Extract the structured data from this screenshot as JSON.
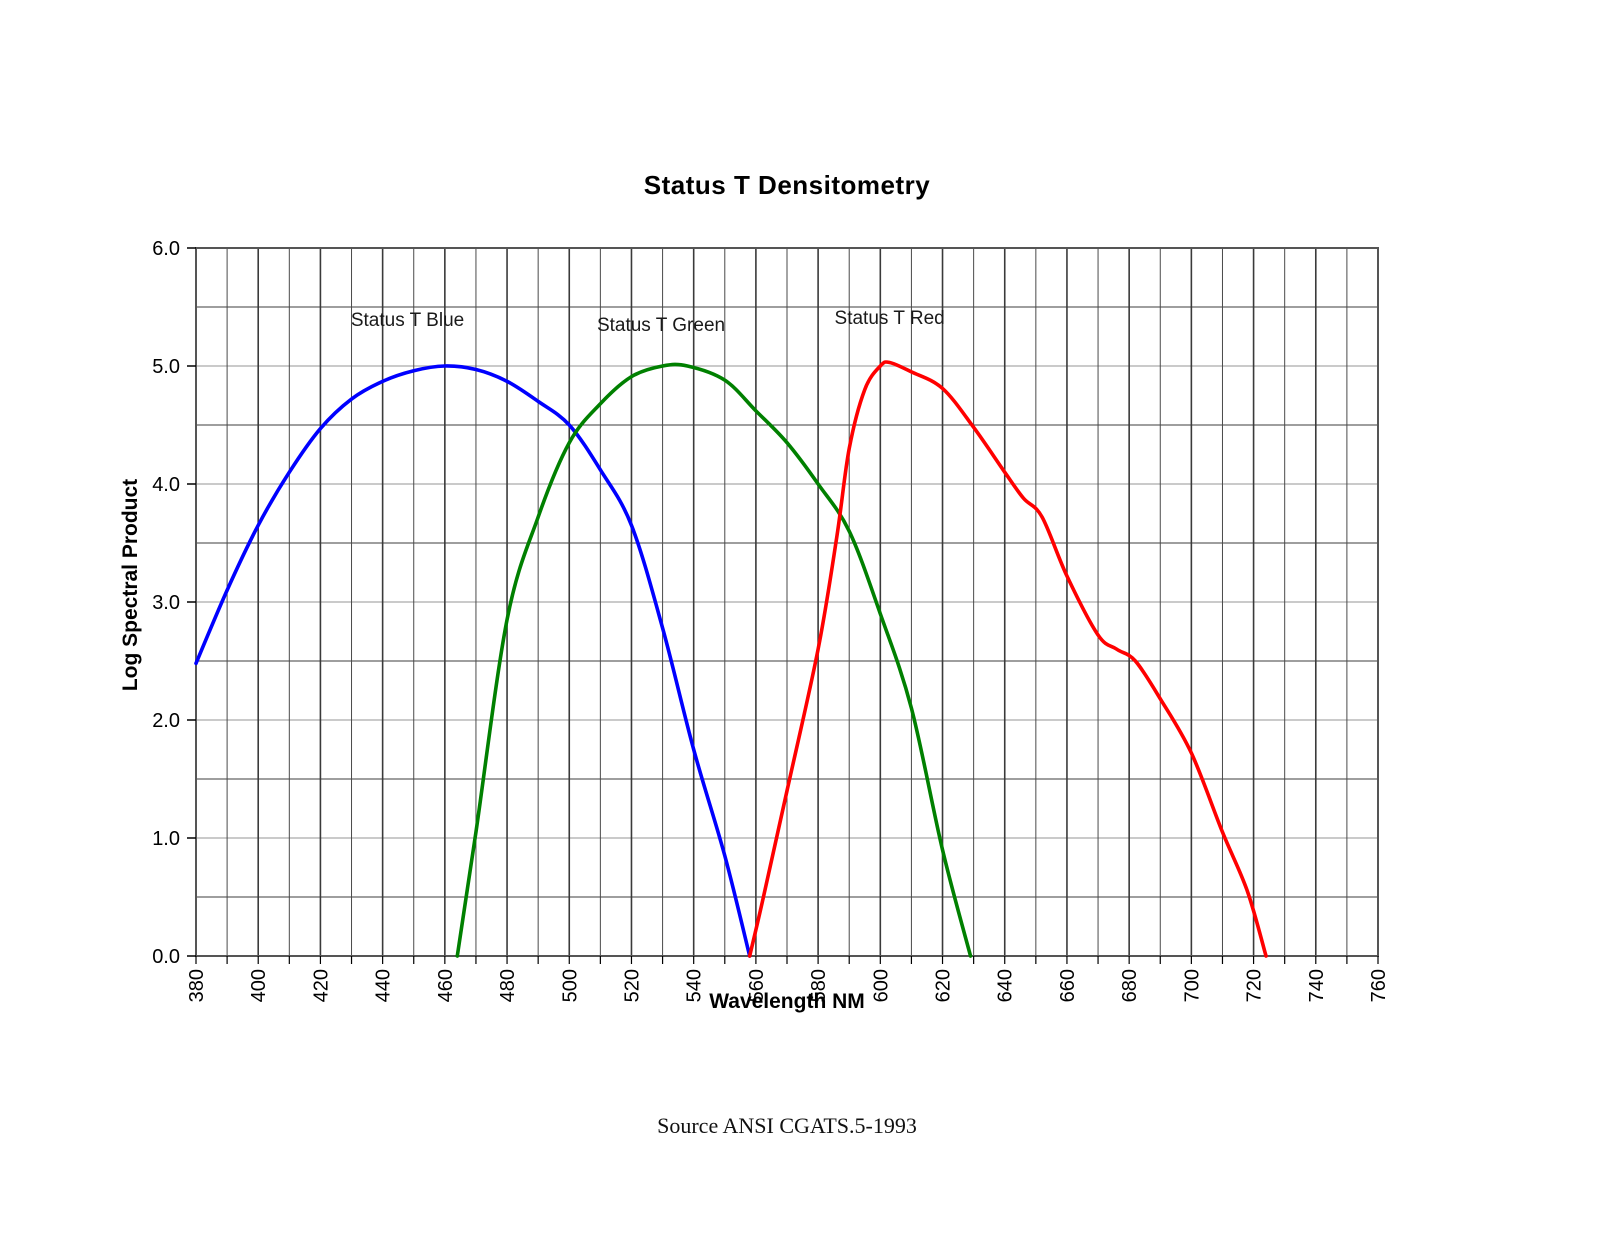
{
  "page": {
    "title": "Status T Densitometry",
    "source": "Source ANSI CGATS.5-1993"
  },
  "chart_data": {
    "type": "line",
    "title": "Status T Densitometry",
    "xlabel": "Wavelength NM",
    "ylabel": "Log Spectral Product",
    "x_axis": {
      "min": 380,
      "max": 760,
      "minor_step": 10,
      "tick_step": 20,
      "tick_labels": [
        "380",
        "400",
        "420",
        "440",
        "460",
        "480",
        "500",
        "520",
        "540",
        "560",
        "580",
        "600",
        "620",
        "640",
        "660",
        "680",
        "700",
        "720",
        "740",
        "760"
      ]
    },
    "y_axis": {
      "min": 0,
      "max": 6,
      "minor_step": 0.5,
      "tick_step": 1,
      "tick_labels": [
        "0.0",
        "1.0",
        "2.0",
        "3.0",
        "4.0",
        "5.0",
        "6.0"
      ]
    },
    "grid": "on",
    "legend": "inline-labels",
    "series": [
      {
        "name": "Status T Blue",
        "color": "#0000FF",
        "points": [
          [
            380,
            2.48
          ],
          [
            390,
            3.1
          ],
          [
            400,
            3.65
          ],
          [
            410,
            4.1
          ],
          [
            420,
            4.47
          ],
          [
            430,
            4.72
          ],
          [
            440,
            4.87
          ],
          [
            450,
            4.96
          ],
          [
            460,
            5.0
          ],
          [
            470,
            4.97
          ],
          [
            480,
            4.87
          ],
          [
            490,
            4.7
          ],
          [
            500,
            4.5
          ],
          [
            510,
            4.12
          ],
          [
            520,
            3.65
          ],
          [
            530,
            2.78
          ],
          [
            540,
            1.75
          ],
          [
            550,
            0.85
          ],
          [
            558,
            0.0
          ]
        ]
      },
      {
        "name": "Status T Green",
        "color": "#008000",
        "points": [
          [
            464,
            0.0
          ],
          [
            470,
            1.05
          ],
          [
            480,
            2.85
          ],
          [
            490,
            3.72
          ],
          [
            500,
            4.35
          ],
          [
            510,
            4.68
          ],
          [
            520,
            4.91
          ],
          [
            530,
            5.0
          ],
          [
            538,
            5.0
          ],
          [
            550,
            4.88
          ],
          [
            560,
            4.62
          ],
          [
            570,
            4.35
          ],
          [
            580,
            4.0
          ],
          [
            590,
            3.6
          ],
          [
            600,
            2.9
          ],
          [
            610,
            2.1
          ],
          [
            620,
            0.9
          ],
          [
            629,
            0.0
          ]
        ]
      },
      {
        "name": "Status T Red",
        "color": "#FF0000",
        "points": [
          [
            558,
            0.0
          ],
          [
            562,
            0.45
          ],
          [
            570,
            1.4
          ],
          [
            580,
            2.6
          ],
          [
            586,
            3.55
          ],
          [
            590,
            4.3
          ],
          [
            595,
            4.8
          ],
          [
            600,
            5.0
          ],
          [
            603,
            5.03
          ],
          [
            610,
            4.95
          ],
          [
            620,
            4.81
          ],
          [
            630,
            4.48
          ],
          [
            640,
            4.1
          ],
          [
            646,
            3.88
          ],
          [
            652,
            3.72
          ],
          [
            660,
            3.22
          ],
          [
            670,
            2.72
          ],
          [
            676,
            2.6
          ],
          [
            682,
            2.5
          ],
          [
            690,
            2.18
          ],
          [
            700,
            1.72
          ],
          [
            710,
            1.05
          ],
          [
            718,
            0.55
          ],
          [
            724,
            0.0
          ]
        ]
      }
    ],
    "annotations": [
      {
        "text": "Status T Blue",
        "nm": 448.0,
        "val": 5.38
      },
      {
        "text": "Status T Green",
        "nm": 529.5,
        "val": 5.34
      },
      {
        "text": "Status T Red",
        "nm": 603.0,
        "val": 5.4
      }
    ],
    "style": {
      "grid_minor_h": "#3d3d3d",
      "grid_major_h": "#b8b8b8",
      "grid_minor_v": "#4a4a4a",
      "grid_major_v": "#3a3a3a",
      "border": "#555555",
      "tick_color": "#000000"
    }
  }
}
